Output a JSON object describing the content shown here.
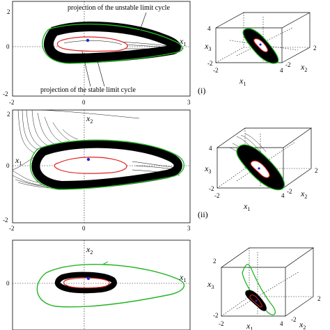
{
  "figure": {
    "annotations": {
      "unstable": "projection of the unstable limit cycle",
      "stable": "projection of the stable limit cycle"
    },
    "panel_labels": [
      "(i)",
      "(ii)"
    ],
    "panel1": {
      "yticks": [
        "2",
        "0",
        "-2"
      ],
      "xticks": [
        "-2",
        "0",
        "3"
      ],
      "xvar": "x",
      "xsub": "1"
    },
    "panel2": {
      "yticks": [
        "2",
        "0",
        "-2"
      ],
      "xticks": [
        "-2",
        "0",
        "3"
      ],
      "xvar": "x",
      "xsub": "1",
      "yvar": "x",
      "ysub": "2"
    },
    "panel3": {
      "yticks": [
        "0"
      ],
      "xvar": "x",
      "xsub": "1",
      "yvar": "x",
      "ysub": "2"
    },
    "cube1": {
      "ticks": [
        "4",
        "-2",
        "-2",
        "4",
        "-2",
        "2"
      ],
      "x1": "x",
      "x1sub": "1",
      "x2": "x",
      "x2sub": "2",
      "x3": "x",
      "x3sub": "3"
    },
    "cube2": {
      "ticks": [
        "4",
        "-2",
        "-2",
        "4",
        "-2",
        "2"
      ],
      "x1": "x",
      "x1sub": "1",
      "x2": "x",
      "x2sub": "2",
      "x3": "x",
      "x3sub": "3"
    },
    "cube3": {
      "ticks": [
        "2",
        "-2",
        "-2",
        "4",
        "-2",
        "2"
      ],
      "x1": "x",
      "x1sub": "1",
      "x2": "x",
      "x2sub": "2",
      "x3": "x",
      "x3sub": "3"
    },
    "colors": {
      "unstable_cycle": "#22b522",
      "stable_cycle": "#e02020",
      "trajectory": "#000000",
      "equilibrium": "#1a2bd6"
    }
  }
}
